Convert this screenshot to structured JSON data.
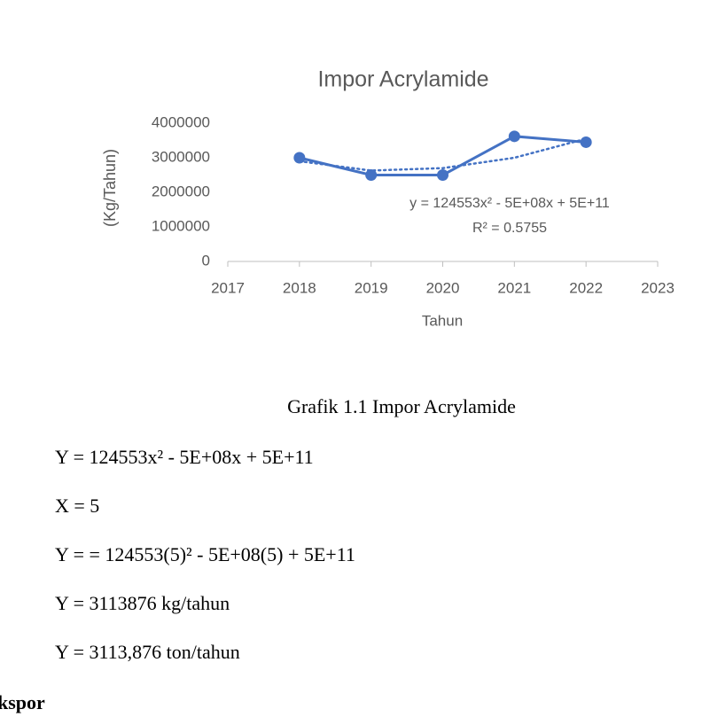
{
  "chart_data": {
    "type": "line",
    "title": "Impor Acrylamide",
    "x_label": "Tahun",
    "y_label": "(Kg/Tahun)",
    "x": [
      2018,
      2019,
      2020,
      2021,
      2022
    ],
    "series": [
      {
        "color": "#4472c4",
        "values": [
          3000000,
          2500000,
          2500000,
          3620000,
          3450000
        ]
      }
    ],
    "trendline": {
      "color": "#4472c4",
      "style": "dotted",
      "values": [
        2900000,
        2630000,
        2700000,
        3000000,
        3550000
      ],
      "equation": "y = 124553x² - 5E+08x + 5E+11",
      "r_squared": "R² = 0.5755"
    },
    "xlim": [
      2017,
      2023
    ],
    "xticks": [
      2017,
      2018,
      2019,
      2020,
      2021,
      2022,
      2023
    ],
    "ylim": [
      0,
      4000000
    ],
    "yticks": [
      0,
      1000000,
      2000000,
      3000000,
      4000000
    ],
    "grid": false
  },
  "caption": "Grafik 1.1 Impor Acrylamide",
  "lines": [
    "Y =  124553x² - 5E+08x + 5E+11",
    "X = 5",
    "Y = = 124553(5)² - 5E+08(5) + 5E+11",
    "Y = 3113876 kg/tahun",
    "Y =  3113,876 ton/tahun"
  ],
  "section": "kspor"
}
